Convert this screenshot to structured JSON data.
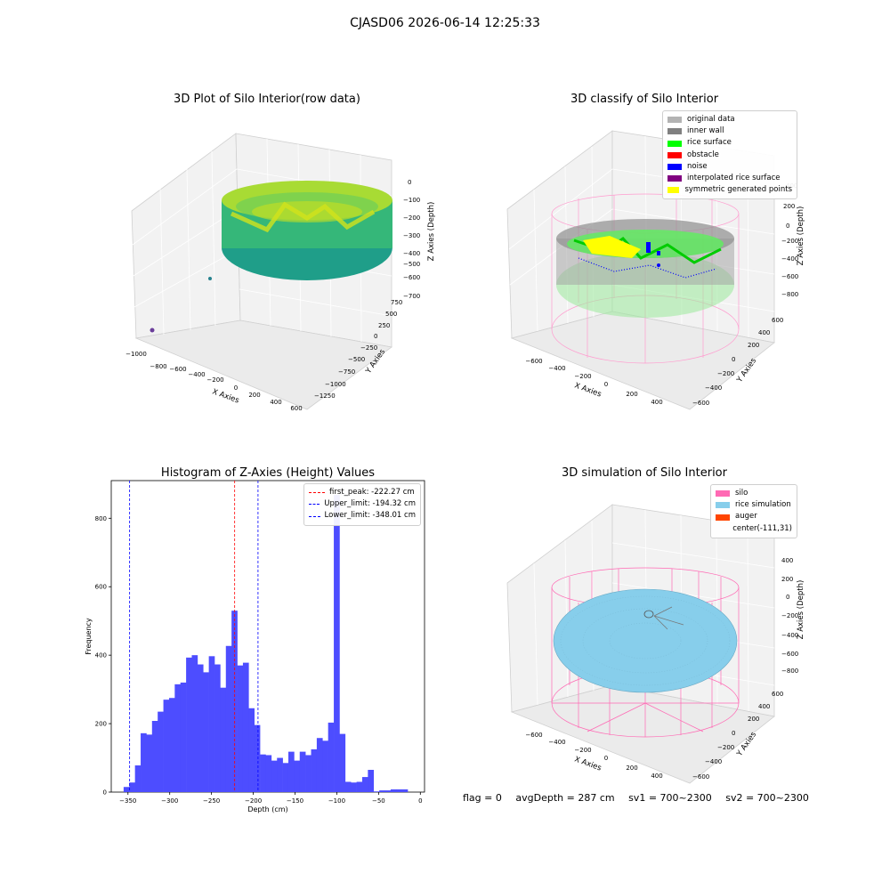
{
  "figure": {
    "title": "CJASD06 2026-06-14 12:25:33"
  },
  "panels": {
    "raw": {
      "title": "3D Plot of Silo Interior(row data)",
      "xlabel": "X Axies",
      "ylabel": "Y Axies",
      "zlabel": "Z Axies (Depth)",
      "xticks": [
        "−1000",
        "−800",
        "−600",
        "−400",
        "−200",
        "0",
        "200",
        "400",
        "600"
      ],
      "yticks": [
        "−1250",
        "−1000",
        "−750",
        "−500",
        "−250",
        "0",
        "250",
        "500",
        "750"
      ],
      "zticks": [
        "0",
        "−100",
        "−200",
        "−300",
        "−400",
        "−500",
        "−600",
        "−700"
      ]
    },
    "classify": {
      "title": "3D classify of Silo Interior",
      "xlabel": "X Axies",
      "ylabel": "Y Axies",
      "zlabel": "Z Axies (Depth)",
      "xticks": [
        "−600",
        "−400",
        "−200",
        "0",
        "200",
        "400"
      ],
      "yticks": [
        "−600",
        "−400",
        "−200",
        "0",
        "200",
        "400",
        "600"
      ],
      "zticks": [
        "400",
        "200",
        "0",
        "−200",
        "−400",
        "−600",
        "−800"
      ],
      "legend": [
        {
          "label": "original data",
          "color": "#b3b3b3"
        },
        {
          "label": "inner wall",
          "color": "#808080"
        },
        {
          "label": "rice surface",
          "color": "#00ff00"
        },
        {
          "label": "obstacle",
          "color": "#ff0000"
        },
        {
          "label": "noise",
          "color": "#0000ff"
        },
        {
          "label": "interpolated rice surface",
          "color": "#800080"
        },
        {
          "label": "symmetric generated points",
          "color": "#ffff00"
        }
      ]
    },
    "simulation": {
      "title": "3D simulation of Silo Interior",
      "xlabel": "X Axies",
      "ylabel": "Y Axies",
      "zlabel": "Z Axies (Depth)",
      "xticks": [
        "−600",
        "−400",
        "−200",
        "0",
        "200",
        "400"
      ],
      "yticks": [
        "−600",
        "−400",
        "−200",
        "0",
        "200",
        "400",
        "600"
      ],
      "zticks": [
        "400",
        "200",
        "0",
        "−200",
        "−400",
        "−600",
        "−800"
      ],
      "legend": [
        {
          "label": "silo",
          "color": "#ff69b4"
        },
        {
          "label": "rice simulation",
          "color": "#87ceeb"
        },
        {
          "label": "auger",
          "color": "#ff4500"
        },
        {
          "label": "center(-111,31)",
          "color": "none"
        }
      ]
    }
  },
  "chart_data": {
    "type": "bar",
    "title": "Histogram of Z-Axies (Height) Values",
    "xlabel": "Depth (cm)",
    "ylabel": "Frequency",
    "xlim": [
      -370,
      5
    ],
    "ylim": [
      0,
      910
    ],
    "xticks": [
      -350,
      -300,
      -250,
      -200,
      -150,
      -100,
      -50,
      0
    ],
    "xtick_labels": [
      "−350",
      "−300",
      "−250",
      "−200",
      "−150",
      "−100",
      "−50",
      "0"
    ],
    "yticks": [
      0,
      200,
      400,
      600,
      800
    ],
    "bar_color": "#4d4dff",
    "bin_width": 6.8,
    "x": [
      -355.2,
      -348.4,
      -341.6,
      -334.8,
      -328.0,
      -321.2,
      -314.4,
      -307.6,
      -300.8,
      -294.0,
      -287.2,
      -280.4,
      -273.6,
      -266.8,
      -260.0,
      -253.2,
      -246.4,
      -239.6,
      -232.8,
      -226.0,
      -219.2,
      -212.4,
      -205.6,
      -198.8,
      -192.0,
      -185.2,
      -178.4,
      -171.6,
      -164.8,
      -158.0,
      -151.2,
      -144.4,
      -137.6,
      -130.8,
      -124.0,
      -117.2,
      -110.4,
      -103.6,
      -96.8,
      -90.0,
      -83.2,
      -76.4,
      -69.6,
      -62.8,
      -56.0,
      -49.2,
      -42.4,
      -35.6,
      -28.8,
      -22.0,
      -15.2
    ],
    "values": [
      15,
      28,
      78,
      172,
      168,
      208,
      235,
      270,
      275,
      315,
      320,
      393,
      400,
      373,
      350,
      397,
      373,
      305,
      427,
      530,
      370,
      378,
      245,
      196,
      110,
      108,
      92,
      100,
      85,
      118,
      92,
      118,
      108,
      125,
      158,
      150,
      203,
      868,
      170,
      30,
      28,
      30,
      44,
      65,
      2,
      5,
      5,
      8,
      8,
      8,
      0
    ],
    "vlines": [
      {
        "x": -222.27,
        "color": "#ff0000",
        "label": "first_peak: -222.27 cm"
      },
      {
        "x": -194.32,
        "color": "#0000ff",
        "label": "Upper_limit: -194.32 cm"
      },
      {
        "x": -348.01,
        "color": "#0000ff",
        "label": "Lower_limit: -348.01 cm"
      }
    ],
    "legend_position": "top-right"
  },
  "footer": {
    "flag": "flag = 0",
    "avg_depth": "avgDepth = 287 cm",
    "sv1": "sv1 = 700~2300",
    "sv2": "sv2 = 700~2300"
  }
}
